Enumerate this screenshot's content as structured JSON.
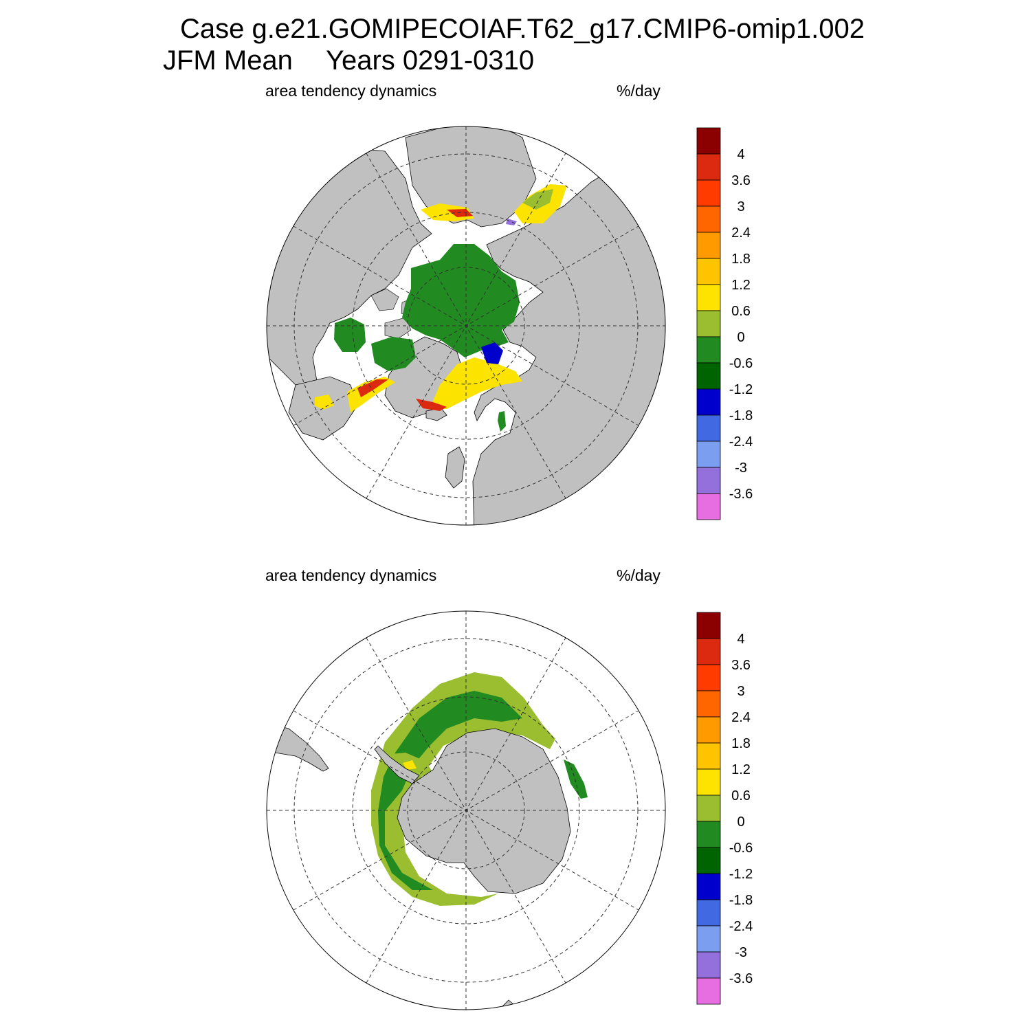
{
  "header": {
    "case_line": "Case g.e21.GOMIPECOIAF.T62_g17.CMIP6-omip1.002",
    "season": "JFM Mean",
    "years": "Years 0291-0310"
  },
  "panels": [
    {
      "variable": "area tendency dynamics",
      "units": "%/day",
      "hemisphere": "north"
    },
    {
      "variable": "area tendency dynamics",
      "units": "%/day",
      "hemisphere": "south"
    }
  ],
  "colorbar": {
    "labels": [
      "4",
      "3.6",
      "3",
      "2.4",
      "1.8",
      "1.2",
      "0.6",
      "0",
      "-0.6",
      "-1.2",
      "-1.8",
      "-2.4",
      "-3",
      "-3.6"
    ],
    "colors": [
      "#8b0000",
      "#dc2a10",
      "#ff3b00",
      "#ff6600",
      "#ff9a00",
      "#ffc400",
      "#fde400",
      "#9abe30",
      "#218a21",
      "#006400",
      "#0000cd",
      "#4169e1",
      "#7b9ef0",
      "#9370db",
      "#e66ee0"
    ]
  },
  "map_colors": {
    "land": "#c0c0c0",
    "ocean": "#ffffff"
  }
}
